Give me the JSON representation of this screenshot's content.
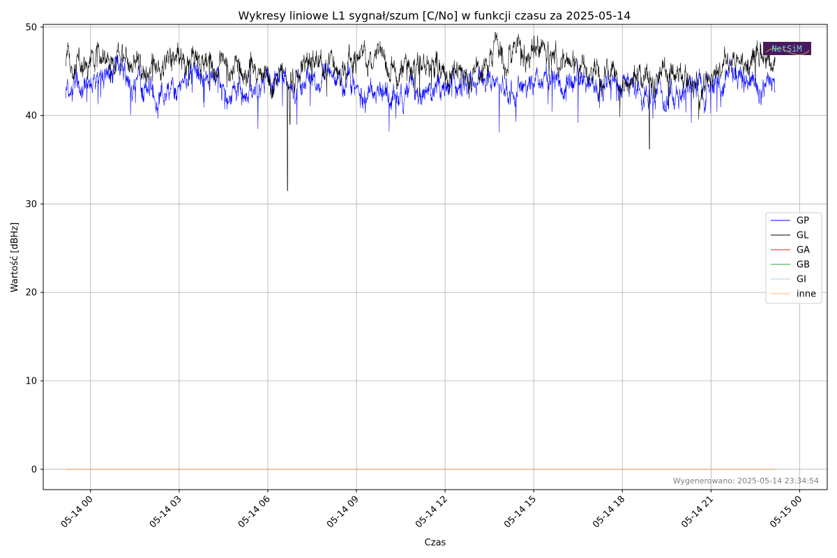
{
  "chart_data": {
    "type": "line",
    "title": "Wykresy liniowe L1 sygnał/szum [C/No] w funkcji czasu za 2025-05-14",
    "xlabel": "Czas",
    "ylabel": "Wartość [dBHz]",
    "x_range": [
      "2025-05-13 22:24",
      "2025-05-15 00:56"
    ],
    "data_span": [
      "2025-05-13 23:10",
      "2025-05-14 23:10"
    ],
    "ylim": [
      -2.3,
      50.3
    ],
    "grid": true,
    "legend_position": "right",
    "x_tick_labels": [
      "05-14 00",
      "05-14 03",
      "05-14 06",
      "05-14 09",
      "05-14 12",
      "05-14 15",
      "05-14 18",
      "05-14 21",
      "05-15 00"
    ],
    "y_ticks": [
      0,
      10,
      20,
      30,
      40,
      50
    ],
    "series": [
      {
        "name": "GP",
        "color": "#0000ff",
        "x": [
          "2025-05-13 23:10",
          "2025-05-14 00:10",
          "2025-05-14 01:00",
          "2025-05-14 02:00",
          "2025-05-14 02:50",
          "2025-05-14 03:30",
          "2025-05-14 04:20",
          "2025-05-14 05:00",
          "2025-05-14 05:40",
          "2025-05-14 06:30",
          "2025-05-14 07:10",
          "2025-05-14 08:00",
          "2025-05-14 09:00",
          "2025-05-14 10:00",
          "2025-05-14 11:00",
          "2025-05-14 12:00",
          "2025-05-14 13:00",
          "2025-05-14 14:00",
          "2025-05-14 15:00",
          "2025-05-14 16:00",
          "2025-05-14 17:00",
          "2025-05-14 18:00",
          "2025-05-14 19:00",
          "2025-05-14 20:00",
          "2025-05-14 21:00",
          "2025-05-14 22:00",
          "2025-05-14 23:10"
        ],
        "values": [
          43.2,
          43.8,
          44.3,
          42.6,
          43.0,
          44.6,
          44.2,
          42.4,
          42.6,
          44.6,
          43.6,
          44.3,
          43.6,
          42.1,
          43.3,
          42.8,
          43.6,
          42.6,
          44.2,
          43.9,
          43.2,
          43.4,
          42.6,
          42.5,
          43.6,
          44.3,
          42.9
        ],
        "annotations": {
          "dips": [
            {
              "x": "2025-05-14 05:40",
              "y": 38.5
            },
            {
              "x": "2025-05-14 13:50",
              "y": 38.1
            },
            {
              "x": "2025-05-14 16:30",
              "y": 39.2
            },
            {
              "x": "2025-05-14 20:20",
              "y": 39.2
            }
          ]
        }
      },
      {
        "name": "GL",
        "color": "#000000",
        "x": [
          "2025-05-13 23:10",
          "2025-05-14 00:10",
          "2025-05-14 01:10",
          "2025-05-14 02:00",
          "2025-05-14 03:00",
          "2025-05-14 04:00",
          "2025-05-14 05:00",
          "2025-05-14 06:00",
          "2025-05-14 06:40",
          "2025-05-14 07:30",
          "2025-05-14 08:30",
          "2025-05-14 09:10",
          "2025-05-14 10:00",
          "2025-05-14 11:00",
          "2025-05-14 12:00",
          "2025-05-14 12:40",
          "2025-05-14 13:30",
          "2025-05-14 14:30",
          "2025-05-14 15:10",
          "2025-05-14 16:00",
          "2025-05-14 17:00",
          "2025-05-14 18:00",
          "2025-05-14 18:40",
          "2025-05-14 19:30",
          "2025-05-14 20:30",
          "2025-05-14 21:20",
          "2025-05-14 22:20",
          "2025-05-14 23:10"
        ],
        "values": [
          46.4,
          45.8,
          46.2,
          45.0,
          46.4,
          45.3,
          45.6,
          44.4,
          43.8,
          46.1,
          45.1,
          46.9,
          45.3,
          45.9,
          45.5,
          43.6,
          46.6,
          46.9,
          47.1,
          45.6,
          45.6,
          44.3,
          44.0,
          44.8,
          43.4,
          45.6,
          46.3,
          46.2
        ],
        "annotations": {
          "dips": [
            {
              "x": "2025-05-14 06:40",
              "y": 31.5
            },
            {
              "x": "2025-05-14 06:45",
              "y": 39.0
            },
            {
              "x": "2025-05-14 18:55",
              "y": 36.2
            },
            {
              "x": "2025-05-14 20:35",
              "y": 39.6
            }
          ]
        }
      },
      {
        "name": "GA",
        "color": "#d62728",
        "x": [
          "2025-05-13 23:10",
          "2025-05-14 23:10"
        ],
        "values": [
          0,
          0
        ]
      },
      {
        "name": "GB",
        "color": "#2ca02c",
        "x": [
          "2025-05-13 23:10",
          "2025-05-14 23:10"
        ],
        "values": [
          0,
          0
        ]
      },
      {
        "name": "GI",
        "color": "#aec7e8",
        "x": [
          "2025-05-13 23:10",
          "2025-05-14 23:10"
        ],
        "values": [
          0,
          0
        ]
      },
      {
        "name": "inne",
        "color": "#ffbb78",
        "x": [
          "2025-05-13 23:10",
          "2025-05-14 23:10"
        ],
        "values": [
          0,
          0
        ]
      }
    ]
  },
  "footer_note": "Wygenerowano: 2025-05-14 23:34:54",
  "logo_text": "NetSiM"
}
